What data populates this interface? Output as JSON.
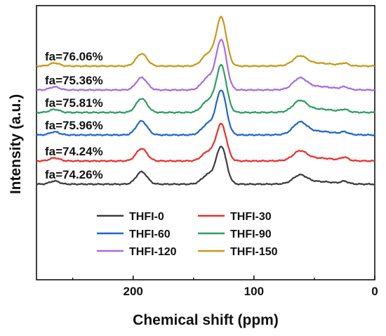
{
  "chart_data": {
    "type": "line",
    "xlabel": "Chemical shift (ppm)",
    "ylabel": "Intensity (a.u.)",
    "xlim": [
      280,
      0
    ],
    "x_reversed": true,
    "x_ticks": [
      200,
      100,
      0
    ],
    "x_tick_labels": [
      "200",
      "100",
      "0"
    ],
    "y_ticks_shown": false,
    "grid": false,
    "legend_position": "lower-center",
    "legend_columns": 2,
    "peaks_ppm": [
      265,
      193,
      127,
      62,
      25
    ],
    "series": [
      {
        "name": "THFI-0",
        "color": "#3d3d3d",
        "fa_label": "fa=74.26%",
        "offset": 0,
        "peak_heights": [
          0.4,
          1.6,
          4.8,
          1.0,
          0.3
        ]
      },
      {
        "name": "THFI-30",
        "color": "#e8322c",
        "fa_label": "fa=74.24%",
        "offset": 33,
        "peak_heights": [
          0.4,
          1.6,
          4.7,
          1.1,
          0.4
        ]
      },
      {
        "name": "THFI-60",
        "color": "#1f66d1",
        "fa_label": "fa=75.96%",
        "offset": 70,
        "peak_heights": [
          0.4,
          1.8,
          5.7,
          1.4,
          0.3
        ]
      },
      {
        "name": "THFI-90",
        "color": "#2e9e64",
        "fa_label": "fa=75.81%",
        "offset": 102,
        "peak_heights": [
          0.4,
          1.8,
          6.0,
          1.3,
          0.3
        ]
      },
      {
        "name": "THFI-120",
        "color": "#a96ce0",
        "fa_label": "fa=75.36%",
        "offset": 134,
        "peak_heights": [
          0.4,
          1.6,
          6.4,
          1.3,
          0.3
        ]
      },
      {
        "name": "THFI-150",
        "color": "#c69a1a",
        "fa_label": "fa=76.06%",
        "offset": 168,
        "peak_heights": [
          0.4,
          1.6,
          6.2,
          1.1,
          0.3
        ]
      }
    ]
  }
}
